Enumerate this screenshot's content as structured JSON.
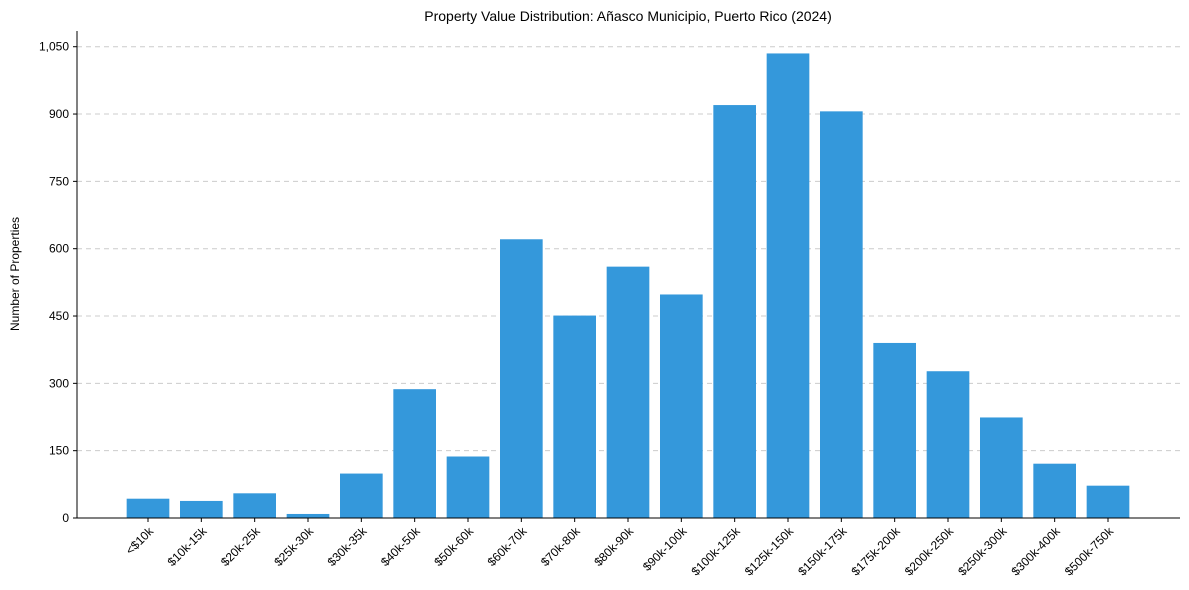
{
  "chart_data": {
    "type": "bar",
    "title": "Property Value Distribution: Añasco Municipio, Puerto Rico (2024)",
    "xlabel": "",
    "ylabel": "Number of Properties",
    "categories": [
      "<$10k",
      "$10k-15k",
      "$20k-25k",
      "$25k-30k",
      "$30k-35k",
      "$40k-50k",
      "$50k-60k",
      "$60k-70k",
      "$70k-80k",
      "$80k-90k",
      "$90k-100k",
      "$100k-125k",
      "$125k-150k",
      "$150k-175k",
      "$175k-200k",
      "$200k-250k",
      "$250k-300k",
      "$300k-400k",
      "$500k-750k"
    ],
    "values": [
      43,
      38,
      55,
      9,
      99,
      287,
      137,
      621,
      451,
      560,
      498,
      920,
      1035,
      906,
      390,
      327,
      224,
      121,
      72
    ],
    "ylim": [
      0,
      1085
    ],
    "yticks": [
      0,
      150,
      300,
      450,
      600,
      750,
      900,
      1050
    ],
    "ytick_labels": [
      "0",
      "150",
      "300",
      "450",
      "600",
      "750",
      "900",
      "1,050"
    ],
    "grid": true,
    "bar_color": "#3498db"
  }
}
